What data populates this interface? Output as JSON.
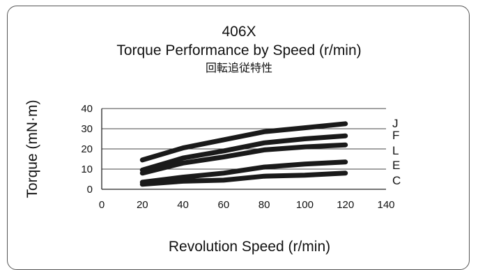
{
  "chart_data": {
    "type": "line",
    "title": "406X",
    "subtitle": "Torque Performance by Speed (r/min)",
    "subtitle_ja": "回転追従特性",
    "xlabel": "Revolution Speed (r/min)",
    "ylabel": "Torque (mN·m)",
    "xlim": [
      0,
      140
    ],
    "ylim": [
      0,
      40
    ],
    "x_ticks": [
      0,
      20,
      40,
      60,
      80,
      100,
      120,
      140
    ],
    "y_ticks": [
      0,
      10,
      20,
      30,
      40
    ],
    "grid": "horizontal",
    "line_color": "#1a1a1a",
    "x": [
      20,
      40,
      60,
      80,
      100,
      120
    ],
    "series": [
      {
        "name": "J",
        "values": [
          14.5,
          20.5,
          24.5,
          28.5,
          30.5,
          32.5
        ]
      },
      {
        "name": "F",
        "values": [
          9.5,
          15.5,
          19,
          23,
          25,
          26.5
        ]
      },
      {
        "name": "L",
        "values": [
          8,
          13,
          16,
          19.5,
          21,
          22
        ]
      },
      {
        "name": "E",
        "values": [
          3.5,
          6,
          8,
          11,
          12.5,
          13.5
        ]
      },
      {
        "name": "C",
        "values": [
          2.5,
          4,
          4.5,
          6.5,
          7,
          8
        ]
      }
    ]
  }
}
